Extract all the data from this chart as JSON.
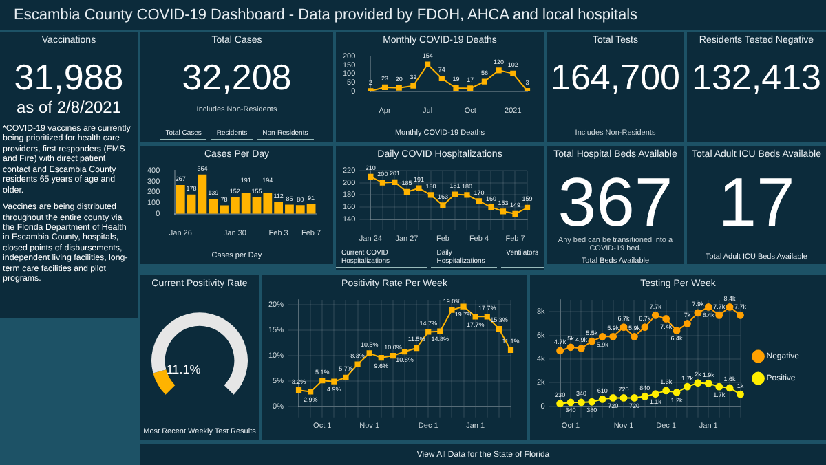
{
  "chart_data": [
    {
      "type": "other",
      "title": "Escambia County COVID-19 Dashboard - Data provided by FDOH, AHCA and local hospitals"
    },
    {
      "type": "other",
      "title": "Vaccinations",
      "annotations": [
        "31,988",
        "as of 2/8/2021",
        "*COVID-19 vaccines are currently being prioritized for health care providers, first responders (EMS and Fire) with direct patient contact and Escambia County residents 65 years of age and older.",
        "Vaccines are being distributed throughout the entire county via the Florida Department of Health in Escambia County, hospitals, closed points of disbursements, independent living facilities, long-term care facilities and pilot programs."
      ]
    },
    {
      "type": "other",
      "title": "Total Cases",
      "annotations": [
        "32,208",
        "Includes Non-Residents",
        "Total Cases",
        "Residents",
        "Non-Residents"
      ]
    },
    {
      "type": "line",
      "title": "Monthly COVID-19 Deaths",
      "categories": [
        null,
        "Apr",
        null,
        null,
        "Jul",
        null,
        null,
        "Oct",
        null,
        null,
        "2021",
        null
      ],
      "series": [
        {
          "color": "#ffb300",
          "values": [
            2,
            23,
            20,
            32,
            154,
            74,
            19,
            17,
            56,
            120,
            102,
            3
          ]
        }
      ],
      "ylim": [
        0,
        200
      ],
      "yticks": [
        0,
        50,
        100,
        150,
        200
      ],
      "marker": "square",
      "data_labels": true,
      "annotations": [
        "Monthly COVID-19 Deaths"
      ]
    },
    {
      "type": "other",
      "title": "Total Tests",
      "annotations": [
        "164,700",
        "Includes Non-Residents"
      ]
    },
    {
      "type": "other",
      "title": "Residents Tested Negative",
      "annotations": [
        "132,413"
      ]
    },
    {
      "type": "bar",
      "title": "Cases Per Day",
      "categories": [
        "Jan 26",
        null,
        null,
        null,
        null,
        "Jan 30",
        null,
        null,
        null,
        "Feb 3",
        null,
        null,
        "Feb 7"
      ],
      "series": [
        {
          "color": "#ffb300",
          "values": [
            267,
            178,
            364,
            139,
            78,
            152,
            191,
            155,
            194,
            112,
            85,
            80,
            91
          ]
        }
      ],
      "ylim": [
        0,
        400
      ],
      "yticks": [
        0,
        100,
        200,
        300,
        400
      ],
      "data_labels": true,
      "annotations": [
        "Cases per Day"
      ]
    },
    {
      "type": "line",
      "title": "Daily COVID Hospitalizations",
      "categories": [
        "Jan 24",
        null,
        null,
        "Jan 27",
        null,
        null,
        "Feb",
        null,
        null,
        "Feb 4",
        null,
        null,
        "Feb 7",
        null
      ],
      "series": [
        {
          "color": "#ffb300",
          "values": [
            210,
            200,
            201,
            185,
            191,
            180,
            163,
            181,
            180,
            170,
            160,
            153,
            149,
            159
          ]
        }
      ],
      "ylim": [
        140,
        220
      ],
      "yticks": [
        140,
        160,
        180,
        200,
        220
      ],
      "grid": true,
      "marker": "square",
      "data_labels": true,
      "annotations": [
        "Current COVID Hospitalizations",
        "Daily Hospitalizations",
        "Ventilators"
      ]
    },
    {
      "type": "other",
      "title": "Total Hospital Beds Available",
      "annotations": [
        "367",
        "Any bed can be transitioned into a COVID-19 bed.",
        "Total Beds Available"
      ]
    },
    {
      "type": "other",
      "title": "Total Adult ICU Beds Available",
      "annotations": [
        "17",
        "Total Adult ICU Beds Available"
      ]
    },
    {
      "type": "donut",
      "title": "Current Positivity Rate",
      "categories": [
        null,
        null
      ],
      "values": [
        11.1,
        88.9
      ],
      "colors": [
        "#ffb300",
        "#e6e6e6"
      ],
      "value_labels": [
        "11.1%",
        null
      ],
      "annotations": [
        "Most Recent Weekly Test Results"
      ]
    },
    {
      "type": "line",
      "title": "Positivity Rate Per Week",
      "categories": [
        null,
        null,
        "Oct 1",
        null,
        null,
        null,
        "Nov 1",
        null,
        null,
        null,
        null,
        "Dec 1",
        null,
        null,
        null,
        "Jan 1",
        null,
        null,
        null
      ],
      "series": [
        {
          "color": "#ffb300",
          "values": [
            3.2,
            2.9,
            5.1,
            4.9,
            5.7,
            8.3,
            10.5,
            9.6,
            10.0,
            10.8,
            11.5,
            14.7,
            14.8,
            19.0,
            19.7,
            17.7,
            17.7,
            15.3,
            11.1
          ],
          "value_labels": [
            "3.2%",
            "2.9%",
            "5.1%",
            "4.9%",
            "5.7%",
            "8.3%",
            "10.5%",
            "9.6%",
            "10.0%",
            "10.8%",
            "11.5%",
            "14.7%",
            "14.8%",
            "19.0%",
            "19.7%",
            "17.7%",
            "17.7%",
            "15.3%",
            "11.1%"
          ]
        }
      ],
      "ylim": [
        0,
        21
      ],
      "yticks": [
        {
          "value": 0,
          "label": "0%"
        },
        {
          "value": 5,
          "label": "5%"
        },
        {
          "value": 10,
          "label": "10%"
        },
        {
          "value": 15,
          "label": "15%"
        },
        {
          "value": 20,
          "label": "20%"
        }
      ],
      "grid": true,
      "marker": "square"
    },
    {
      "type": "line",
      "title": "Testing Per Week",
      "categories": [
        null,
        "Oct 1",
        null,
        null,
        null,
        null,
        "Nov 1",
        null,
        null,
        null,
        "Dec 1",
        null,
        null,
        null,
        "Jan 1",
        null,
        null,
        null
      ],
      "series": [
        {
          "name": "Negative",
          "color": "#ffa000",
          "values": [
            4700,
            5000,
            4900,
            5500,
            5900,
            5900,
            6700,
            5900,
            6700,
            7700,
            7400,
            6400,
            7000,
            7900,
            8400,
            7700,
            8400,
            7700
          ],
          "value_labels": [
            "4.7k",
            "5k",
            "4.9k",
            "5.5k",
            "5.9k",
            "5.9k",
            "6.7k",
            "5.9k",
            "6.7k",
            "7.7k",
            "7.4k",
            "6.4k",
            "7k",
            "7.9k",
            "8.4k",
            "7.7k",
            "8.4k",
            "7.7k"
          ]
        },
        {
          "name": "Positive",
          "color": "#ffee00",
          "values": [
            230,
            340,
            340,
            380,
            610,
            720,
            720,
            720,
            840,
            1060,
            1330,
            1180,
            1670,
            1980,
            1940,
            1670,
            1560,
            1030
          ],
          "value_labels": [
            "230",
            "340",
            "340",
            "380",
            "610",
            "720",
            "720",
            "720",
            "840",
            "1.1k",
            "1.3k",
            "1.2k",
            "1.7k",
            "2k",
            "1.9k",
            "1.7k",
            "1.6k",
            "1k"
          ]
        }
      ],
      "ylim": [
        0,
        9000
      ],
      "yticks": [
        {
          "value": 0,
          "label": "0"
        },
        {
          "value": 2000,
          "label": "2k"
        },
        {
          "value": 4000,
          "label": "4k"
        },
        {
          "value": 6000,
          "label": "6k"
        },
        {
          "value": 8000,
          "label": "8k"
        }
      ],
      "grid": true,
      "marker": "circle",
      "legend": "right"
    },
    {
      "type": "other",
      "annotations": [
        "View All Data for the State of Florida"
      ]
    }
  ]
}
